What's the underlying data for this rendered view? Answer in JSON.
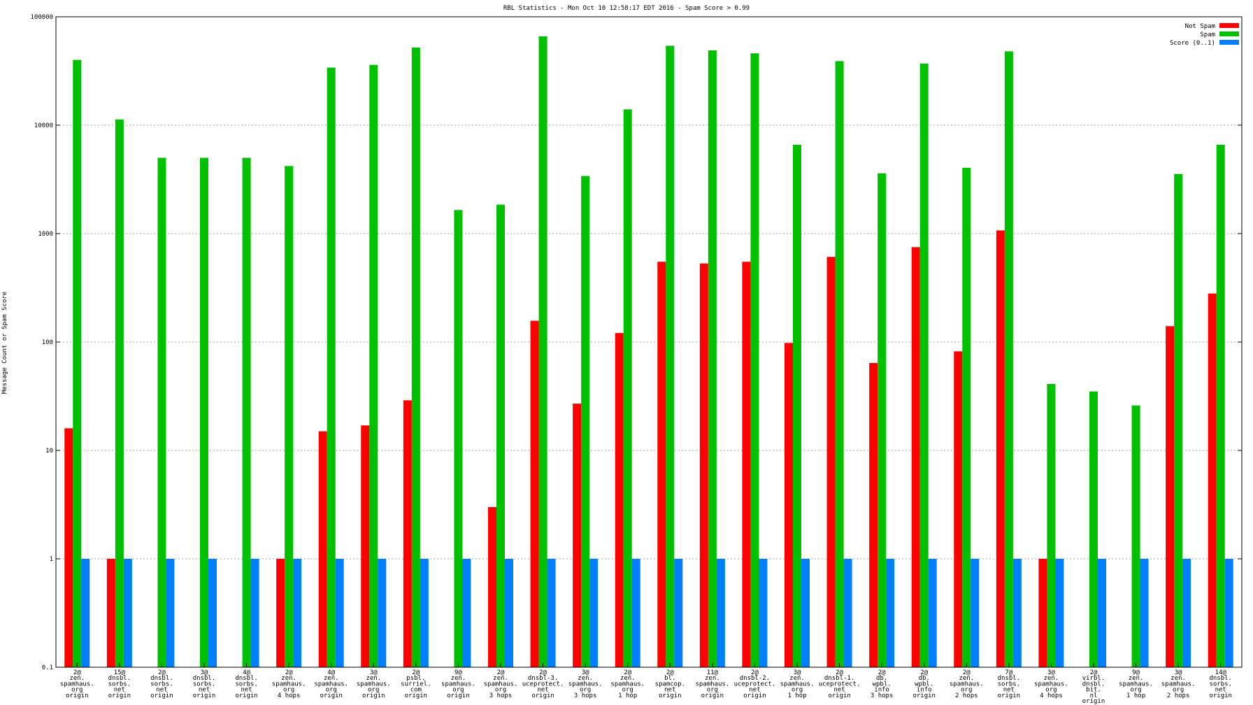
{
  "chart_data": {
    "type": "bar",
    "title": "RBL Statistics - Mon Oct 10 12:58:17 EDT 2016 - Spam Score > 0.99",
    "ylabel": "Message Count or Spam Score",
    "xlabel": "",
    "y_scale": "log",
    "ylim": [
      0.1,
      100000
    ],
    "y_ticks": [
      "0.1",
      "1",
      "10",
      "100",
      "1000",
      "10000",
      "100000"
    ],
    "grid": true,
    "legend_position": "top-right",
    "categories": [
      [
        "2@",
        "zen.",
        "spamhaus.",
        "org",
        "origin"
      ],
      [
        "15@",
        "dnsbl.",
        "sorbs.",
        "net",
        "origin"
      ],
      [
        "2@",
        "dnsbl.",
        "sorbs.",
        "net",
        "origin"
      ],
      [
        "3@",
        "dnsbl.",
        "sorbs.",
        "net",
        "origin"
      ],
      [
        "4@",
        "dnsbl.",
        "sorbs.",
        "net",
        "origin"
      ],
      [
        "2@",
        "zen.",
        "spamhaus.",
        "org",
        "4 hops"
      ],
      [
        "4@",
        "zen.",
        "spamhaus.",
        "org",
        "origin"
      ],
      [
        "3@",
        "zen.",
        "spamhaus.",
        "org",
        "origin"
      ],
      [
        "2@",
        "psbl.",
        "surriel.",
        "com",
        "origin"
      ],
      [
        "9@",
        "zen.",
        "spamhaus.",
        "org",
        "origin"
      ],
      [
        "2@",
        "zen.",
        "spamhaus.",
        "org",
        "3 hops"
      ],
      [
        "2@",
        "dnsbl-3.",
        "uceprotect.",
        "net",
        "origin"
      ],
      [
        "3@",
        "zen.",
        "spamhaus.",
        "org",
        "3 hops"
      ],
      [
        "2@",
        "zen.",
        "spamhaus.",
        "org",
        "1 hop"
      ],
      [
        "2@",
        "bl.",
        "spamcop.",
        "net",
        "origin"
      ],
      [
        "11@",
        "zen.",
        "spamhaus.",
        "org",
        "origin"
      ],
      [
        "2@",
        "dnsbl-2.",
        "uceprotect.",
        "net",
        "origin"
      ],
      [
        "3@",
        "zen.",
        "spamhaus.",
        "org",
        "1 hop"
      ],
      [
        "2@",
        "dnsbl-1.",
        "uceprotect.",
        "net",
        "origin"
      ],
      [
        "2@",
        "db.",
        "wpbl.",
        "info",
        "3 hops"
      ],
      [
        "2@",
        "db.",
        "wpbl.",
        "info",
        "origin"
      ],
      [
        "2@",
        "zen.",
        "spamhaus.",
        "org",
        "2 hops"
      ],
      [
        "7@",
        "dnsbl.",
        "sorbs.",
        "net",
        "origin"
      ],
      [
        "3@",
        "zen.",
        "spamhaus.",
        "org",
        "4 hops"
      ],
      [
        "2@",
        "virbl.",
        "dnsbl.",
        "bit.",
        "nl",
        "origin"
      ],
      [
        "9@",
        "zen.",
        "spamhaus.",
        "org",
        "1 hop"
      ],
      [
        "3@",
        "zen.",
        "spamhaus.",
        "org",
        "2 hops"
      ],
      [
        "14@",
        "dnsbl.",
        "sorbs.",
        "net",
        "origin"
      ]
    ],
    "series": [
      {
        "name": "Not Spam",
        "color": "#ff0000",
        "values": [
          16,
          1,
          null,
          null,
          null,
          1,
          15,
          17,
          29,
          null,
          3,
          157,
          27,
          121,
          550,
          530,
          550,
          98,
          610,
          64,
          750,
          82,
          1070,
          1,
          null,
          null,
          140,
          280
        ]
      },
      {
        "name": "Spam",
        "color": "#00c000",
        "values": [
          40000,
          11300,
          5000,
          5000,
          5000,
          4200,
          34000,
          36000,
          52000,
          1650,
          1850,
          66000,
          3400,
          14000,
          54000,
          49000,
          46000,
          6600,
          39000,
          3600,
          37000,
          4050,
          48000,
          41,
          35,
          26,
          3550,
          6600
        ]
      },
      {
        "name": "Score (0..1)",
        "color": "#0080ff",
        "values": [
          1,
          1,
          1,
          1,
          1,
          1,
          1,
          1,
          1,
          1,
          1,
          1,
          1,
          1,
          1,
          1,
          1,
          1,
          1,
          1,
          1,
          1,
          1,
          1,
          1,
          1,
          1,
          1
        ]
      }
    ]
  }
}
